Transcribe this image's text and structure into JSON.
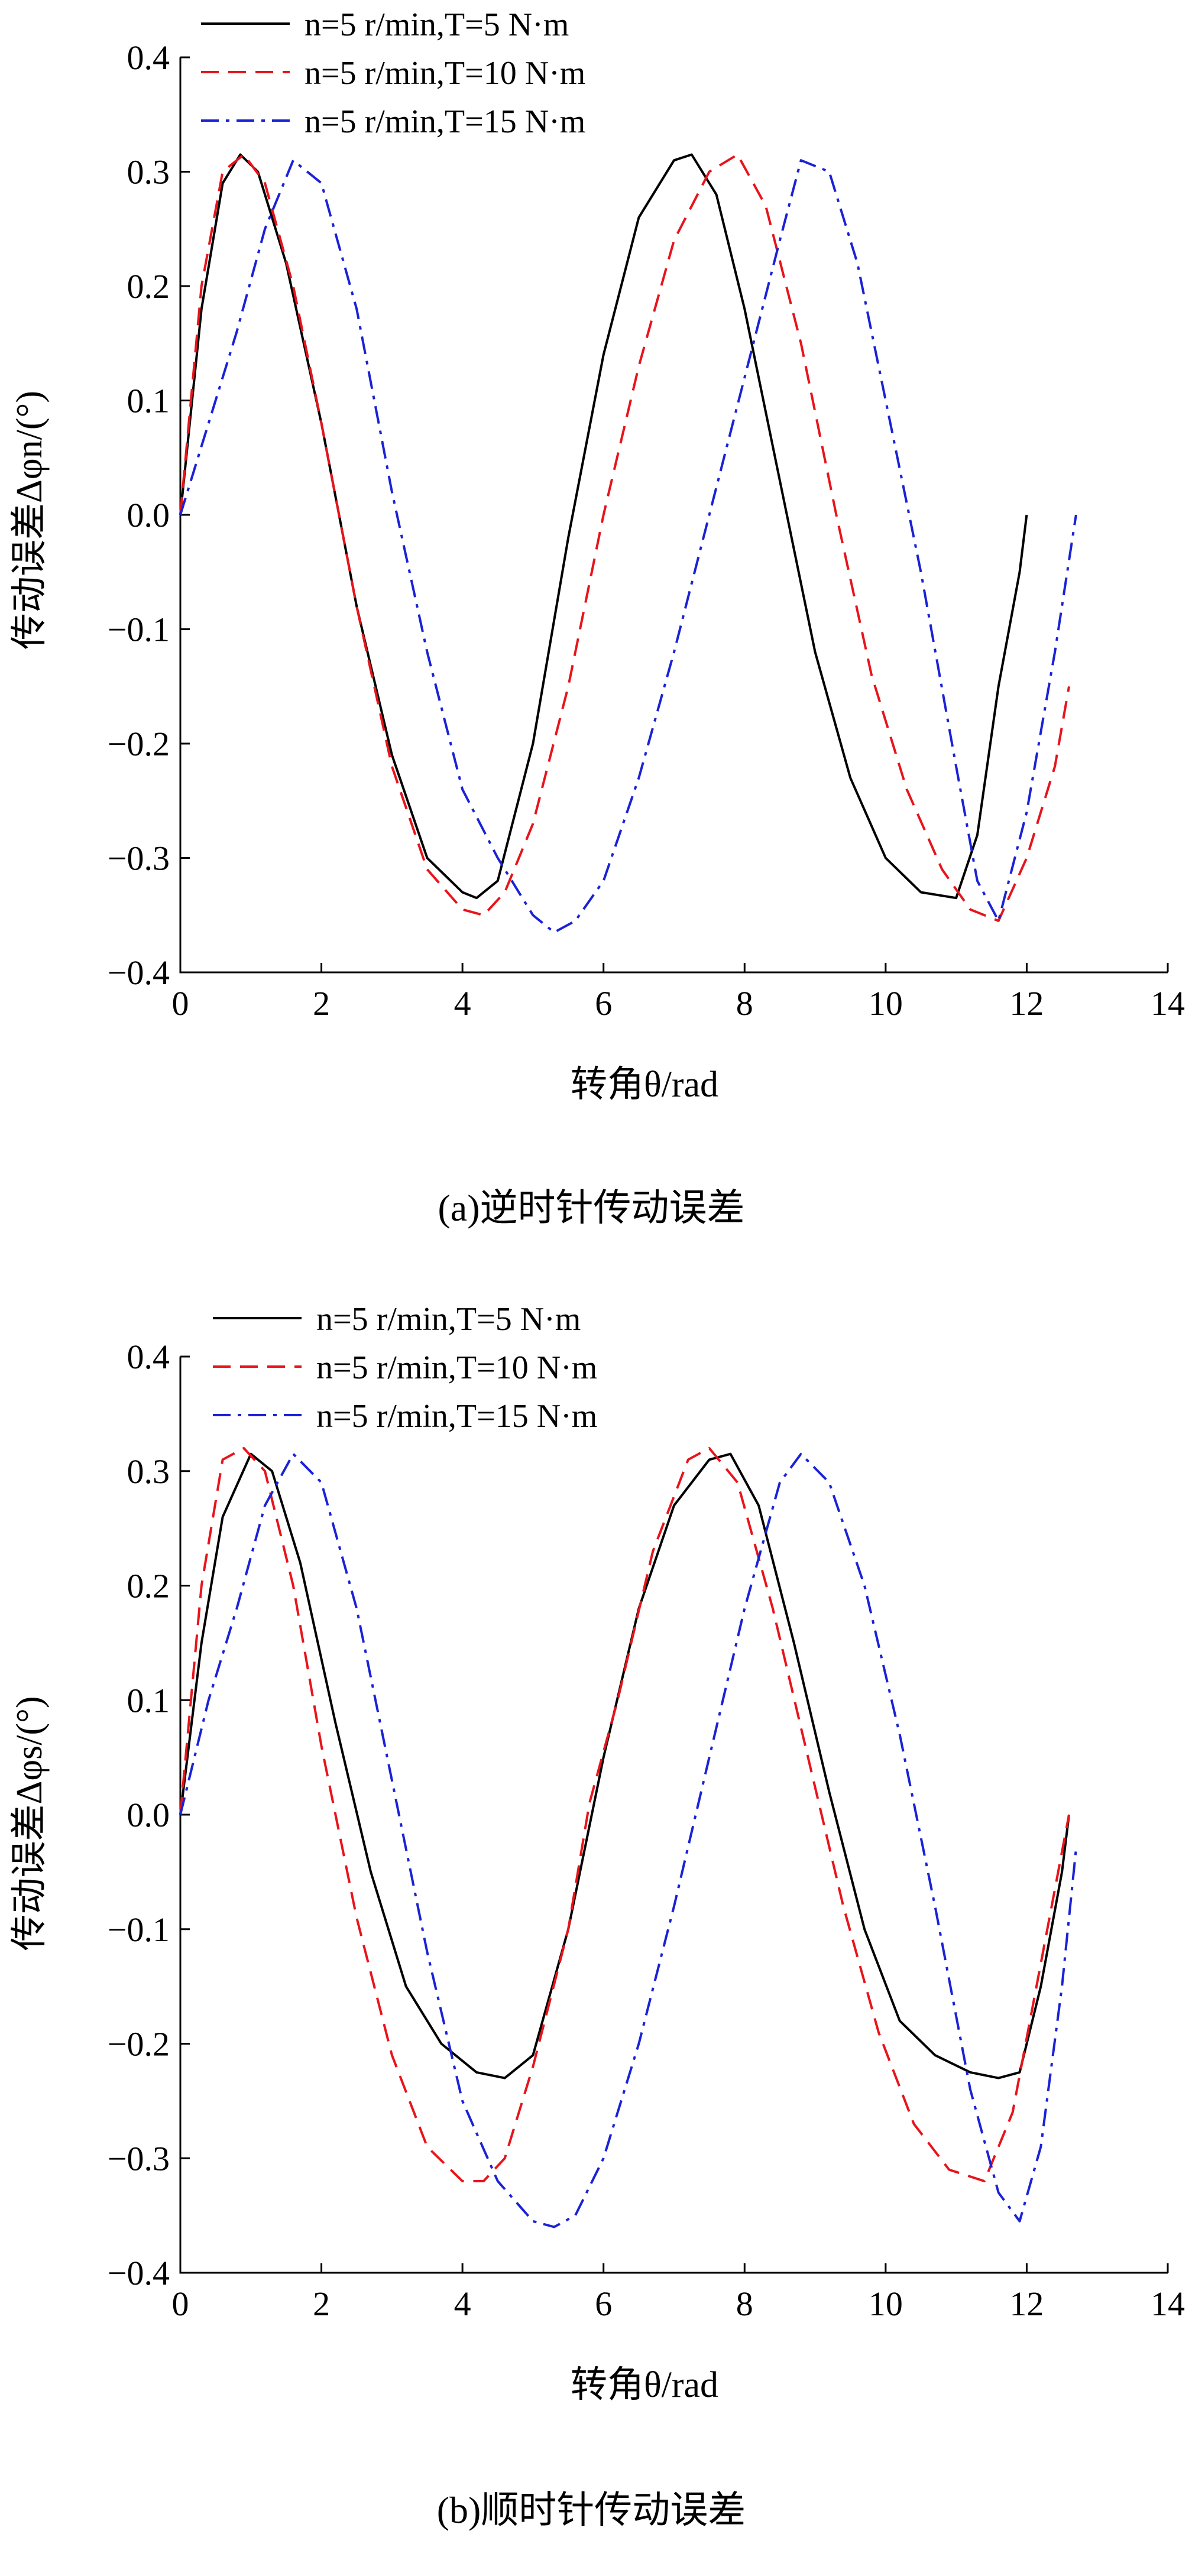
{
  "colors": {
    "s5": "#000000",
    "s10": "#e8141b",
    "s15": "#1a22d6"
  },
  "chart_data": [
    {
      "type": "line",
      "caption": "(a)逆时针传动误差",
      "xlabel": "转角θ/rad",
      "ylabel": "传动误差Δφn/(°)",
      "xlim": [
        0,
        14
      ],
      "ylim": [
        -0.4,
        0.4
      ],
      "xticks": [
        "0",
        "2",
        "4",
        "6",
        "8",
        "10",
        "12",
        "14"
      ],
      "yticks": [
        "0.4",
        "0.3",
        "0.2",
        "0.1",
        "0.0",
        "−0.1",
        "−0.2",
        "−0.3",
        "−0.4"
      ],
      "grid": false,
      "legend": "top-left",
      "series": [
        {
          "name": "n=5 r/min,T=5 N·m",
          "style": "solid",
          "color": "#000000",
          "x": [
            0,
            0.3,
            0.6,
            0.85,
            1.1,
            1.5,
            2.0,
            2.5,
            3.0,
            3.5,
            4.0,
            4.2,
            4.5,
            5.0,
            5.5,
            6.0,
            6.5,
            7.0,
            7.25,
            7.6,
            8.0,
            8.5,
            9.0,
            9.5,
            10.0,
            10.5,
            11.0,
            11.3,
            11.6,
            11.9,
            12.0
          ],
          "y": [
            0,
            0.18,
            0.29,
            0.315,
            0.3,
            0.22,
            0.08,
            -0.08,
            -0.21,
            -0.3,
            -0.33,
            -0.335,
            -0.32,
            -0.2,
            -0.02,
            0.14,
            0.26,
            0.31,
            0.315,
            0.28,
            0.18,
            0.03,
            -0.12,
            -0.23,
            -0.3,
            -0.33,
            -0.335,
            -0.28,
            -0.15,
            -0.05,
            0
          ]
        },
        {
          "name": "n=5 r/min,T=10 N·m",
          "style": "dashed",
          "color": "#e8141b",
          "x": [
            0,
            0.3,
            0.6,
            0.9,
            1.2,
            1.6,
            2.0,
            2.5,
            3.0,
            3.5,
            4.0,
            4.3,
            4.6,
            5.0,
            5.5,
            6.0,
            6.5,
            7.0,
            7.5,
            7.9,
            8.3,
            8.8,
            9.3,
            9.8,
            10.3,
            10.8,
            11.2,
            11.6,
            12.0,
            12.4,
            12.6
          ],
          "y": [
            0,
            0.2,
            0.3,
            0.315,
            0.29,
            0.2,
            0.08,
            -0.08,
            -0.22,
            -0.31,
            -0.345,
            -0.35,
            -0.33,
            -0.27,
            -0.15,
            0.0,
            0.13,
            0.24,
            0.3,
            0.315,
            0.27,
            0.15,
            0.0,
            -0.14,
            -0.24,
            -0.31,
            -0.345,
            -0.355,
            -0.3,
            -0.22,
            -0.15
          ]
        },
        {
          "name": "n=5 r/min,T=15 N·m",
          "style": "dashdot",
          "color": "#1a22d6",
          "x": [
            0,
            0.4,
            0.8,
            1.2,
            1.6,
            2.0,
            2.5,
            3.0,
            3.5,
            4.0,
            4.5,
            5.0,
            5.3,
            5.6,
            6.0,
            6.5,
            7.0,
            7.5,
            8.0,
            8.5,
            8.8,
            9.2,
            9.6,
            10.0,
            10.5,
            11.0,
            11.3,
            11.6,
            12.0,
            12.4,
            12.7
          ],
          "y": [
            0,
            0.08,
            0.16,
            0.25,
            0.31,
            0.29,
            0.18,
            0.02,
            -0.12,
            -0.24,
            -0.3,
            -0.35,
            -0.365,
            -0.355,
            -0.32,
            -0.23,
            -0.12,
            0.0,
            0.12,
            0.24,
            0.31,
            0.3,
            0.22,
            0.1,
            -0.05,
            -0.22,
            -0.32,
            -0.355,
            -0.26,
            -0.12,
            0.0
          ]
        }
      ]
    },
    {
      "type": "line",
      "caption": "(b)顺时针传动误差",
      "xlabel": "转角θ/rad",
      "ylabel": "传动误差Δφs/(°)",
      "xlim": [
        0,
        14
      ],
      "ylim": [
        -0.4,
        0.4
      ],
      "xticks": [
        "0",
        "2",
        "4",
        "6",
        "8",
        "10",
        "12",
        "14"
      ],
      "yticks": [
        "0.4",
        "0.3",
        "0.2",
        "0.1",
        "0.0",
        "−0.1",
        "−0.2",
        "−0.3",
        "−0.4"
      ],
      "grid": false,
      "legend": "top-left",
      "series": [
        {
          "name": "n=5 r/min,T=5 N·m",
          "style": "solid",
          "color": "#000000",
          "x": [
            0,
            0.3,
            0.6,
            1.0,
            1.3,
            1.7,
            2.2,
            2.7,
            3.2,
            3.7,
            4.2,
            4.6,
            5.0,
            5.5,
            6.0,
            6.5,
            7.0,
            7.5,
            7.8,
            8.2,
            8.7,
            9.2,
            9.7,
            10.2,
            10.7,
            11.2,
            11.6,
            11.9,
            12.2,
            12.5,
            12.6
          ],
          "y": [
            0,
            0.15,
            0.26,
            0.315,
            0.3,
            0.22,
            0.08,
            -0.05,
            -0.15,
            -0.2,
            -0.225,
            -0.23,
            -0.21,
            -0.1,
            0.05,
            0.18,
            0.27,
            0.31,
            0.315,
            0.27,
            0.15,
            0.02,
            -0.1,
            -0.18,
            -0.21,
            -0.225,
            -0.23,
            -0.225,
            -0.15,
            -0.05,
            0
          ]
        },
        {
          "name": "n=5 r/min,T=10 N·m",
          "style": "dashed",
          "color": "#e8141b",
          "x": [
            0,
            0.3,
            0.6,
            0.9,
            1.2,
            1.6,
            2.0,
            2.5,
            3.0,
            3.5,
            4.0,
            4.3,
            4.6,
            5.0,
            5.5,
            5.8,
            6.2,
            6.7,
            7.2,
            7.5,
            7.9,
            8.4,
            8.9,
            9.4,
            9.9,
            10.4,
            10.9,
            11.4,
            11.8,
            12.2,
            12.6
          ],
          "y": [
            0,
            0.2,
            0.31,
            0.32,
            0.3,
            0.2,
            0.06,
            -0.09,
            -0.21,
            -0.29,
            -0.32,
            -0.32,
            -0.3,
            -0.22,
            -0.1,
            0.01,
            0.1,
            0.23,
            0.31,
            0.32,
            0.29,
            0.18,
            0.05,
            -0.08,
            -0.19,
            -0.27,
            -0.31,
            -0.32,
            -0.26,
            -0.13,
            0
          ]
        },
        {
          "name": "n=5 r/min,T=15 N·m",
          "style": "dashdot",
          "color": "#1a22d6",
          "x": [
            0,
            0.4,
            0.8,
            1.2,
            1.6,
            2.0,
            2.5,
            3.0,
            3.5,
            4.0,
            4.5,
            5.0,
            5.3,
            5.6,
            6.0,
            6.5,
            7.0,
            7.5,
            8.0,
            8.5,
            8.8,
            9.2,
            9.7,
            10.2,
            10.7,
            11.2,
            11.6,
            11.9,
            12.2,
            12.5,
            12.7
          ],
          "y": [
            0,
            0.1,
            0.18,
            0.27,
            0.315,
            0.29,
            0.18,
            0.03,
            -0.12,
            -0.25,
            -0.32,
            -0.355,
            -0.36,
            -0.35,
            -0.3,
            -0.2,
            -0.08,
            0.05,
            0.18,
            0.29,
            0.315,
            0.29,
            0.2,
            0.07,
            -0.08,
            -0.24,
            -0.33,
            -0.355,
            -0.29,
            -0.15,
            -0.03
          ]
        }
      ]
    }
  ]
}
